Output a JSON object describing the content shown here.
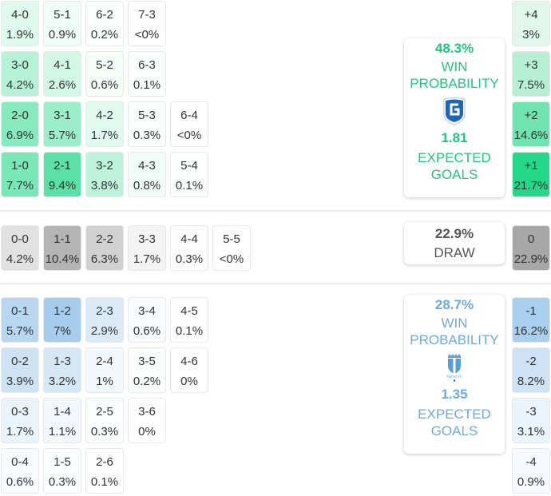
{
  "home_card": {
    "win_pct": "48.3%",
    "win_label_1": "WIN",
    "win_label_2": "PROBABILITY",
    "xg": "1.81",
    "xg_label_1": "EXPECTED",
    "xg_label_2": "GOALS",
    "logo": "genk-crest-icon",
    "color": "#22c77e"
  },
  "draw_card": {
    "pct": "22.9%",
    "label": "DRAW"
  },
  "away_card": {
    "win_pct": "28.7%",
    "win_label_1": "WIN",
    "win_label_2": "PROBABILITY",
    "xg": "1.35",
    "xg_label_1": "EXPECTED",
    "xg_label_2": "GOALS",
    "logo": "malmo-crest-icon",
    "color": "#6fabd9"
  },
  "home_grid": [
    [
      {
        "s": "4-0",
        "p": "1.9%"
      },
      {
        "s": "5-1",
        "p": "0.9%"
      },
      {
        "s": "6-2",
        "p": "0.2%"
      },
      {
        "s": "7-3",
        "p": "<0%"
      }
    ],
    [
      {
        "s": "3-0",
        "p": "4.2%"
      },
      {
        "s": "4-1",
        "p": "2.6%"
      },
      {
        "s": "5-2",
        "p": "0.6%"
      },
      {
        "s": "6-3",
        "p": "0.1%"
      }
    ],
    [
      {
        "s": "2-0",
        "p": "6.9%"
      },
      {
        "s": "3-1",
        "p": "5.7%"
      },
      {
        "s": "4-2",
        "p": "1.7%"
      },
      {
        "s": "5-3",
        "p": "0.3%"
      },
      {
        "s": "6-4",
        "p": "<0%"
      }
    ],
    [
      {
        "s": "1-0",
        "p": "7.7%"
      },
      {
        "s": "2-1",
        "p": "9.4%"
      },
      {
        "s": "3-2",
        "p": "3.8%"
      },
      {
        "s": "4-3",
        "p": "0.8%"
      },
      {
        "s": "5-4",
        "p": "0.1%"
      }
    ]
  ],
  "draw_row": [
    {
      "s": "0-0",
      "p": "4.2%"
    },
    {
      "s": "1-1",
      "p": "10.4%"
    },
    {
      "s": "2-2",
      "p": "6.3%"
    },
    {
      "s": "3-3",
      "p": "1.7%"
    },
    {
      "s": "4-4",
      "p": "0.3%"
    },
    {
      "s": "5-5",
      "p": "<0%"
    }
  ],
  "away_grid": [
    [
      {
        "s": "0-1",
        "p": "5.7%"
      },
      {
        "s": "1-2",
        "p": "7%"
      },
      {
        "s": "2-3",
        "p": "2.9%"
      },
      {
        "s": "3-4",
        "p": "0.6%"
      },
      {
        "s": "4-5",
        "p": "0.1%"
      }
    ],
    [
      {
        "s": "0-2",
        "p": "3.9%"
      },
      {
        "s": "1-3",
        "p": "3.2%"
      },
      {
        "s": "2-4",
        "p": "1%"
      },
      {
        "s": "3-5",
        "p": "0.2%"
      },
      {
        "s": "4-6",
        "p": "0%"
      }
    ],
    [
      {
        "s": "0-3",
        "p": "1.7%"
      },
      {
        "s": "1-4",
        "p": "1.1%"
      },
      {
        "s": "2-5",
        "p": "0.3%"
      },
      {
        "s": "3-6",
        "p": "0%"
      }
    ],
    [
      {
        "s": "0-4",
        "p": "0.6%"
      },
      {
        "s": "1-5",
        "p": "0.3%"
      },
      {
        "s": "2-6",
        "p": "0.1%"
      }
    ]
  ],
  "margins": [
    {
      "m": "+4",
      "p": "3%"
    },
    {
      "m": "+3",
      "p": "7.5%"
    },
    {
      "m": "+2",
      "p": "14.6%"
    },
    {
      "m": "+1",
      "p": "21.7%"
    },
    {
      "m": "0",
      "p": "22.9%"
    },
    {
      "m": "-1",
      "p": "16.2%"
    },
    {
      "m": "-2",
      "p": "8.2%"
    },
    {
      "m": "-3",
      "p": "3.1%"
    },
    {
      "m": "-4",
      "p": "0.9%"
    }
  ],
  "chart_data": {
    "type": "heatmap",
    "title": "Scoreline probabilities",
    "home_win_probability": 48.3,
    "draw_probability": 22.9,
    "away_win_probability": 28.7,
    "home_expected_goals": 1.81,
    "away_expected_goals": 1.35,
    "scorelines": {
      "4-0": 1.9,
      "5-1": 0.9,
      "6-2": 0.2,
      "7-3": 0,
      "3-0": 4.2,
      "4-1": 2.6,
      "5-2": 0.6,
      "6-3": 0.1,
      "2-0": 6.9,
      "3-1": 5.7,
      "4-2": 1.7,
      "5-3": 0.3,
      "6-4": 0,
      "1-0": 7.7,
      "2-1": 9.4,
      "3-2": 3.8,
      "4-3": 0.8,
      "5-4": 0.1,
      "0-0": 4.2,
      "1-1": 10.4,
      "2-2": 6.3,
      "3-3": 1.7,
      "4-4": 0.3,
      "5-5": 0,
      "0-1": 5.7,
      "1-2": 7,
      "2-3": 2.9,
      "3-4": 0.6,
      "4-5": 0.1,
      "0-2": 3.9,
      "1-3": 3.2,
      "2-4": 1,
      "3-5": 0.2,
      "4-6": 0,
      "0-3": 1.7,
      "1-4": 1.1,
      "2-5": 0.3,
      "3-6": 0,
      "0-4": 0.6,
      "1-5": 0.3,
      "2-6": 0.1
    },
    "goal_margin": {
      "categories": [
        "+4",
        "+3",
        "+2",
        "+1",
        "0",
        "-1",
        "-2",
        "-3",
        "-4"
      ],
      "values": [
        3,
        7.5,
        14.6,
        21.7,
        22.9,
        16.2,
        8.2,
        3.1,
        0.9
      ]
    }
  }
}
